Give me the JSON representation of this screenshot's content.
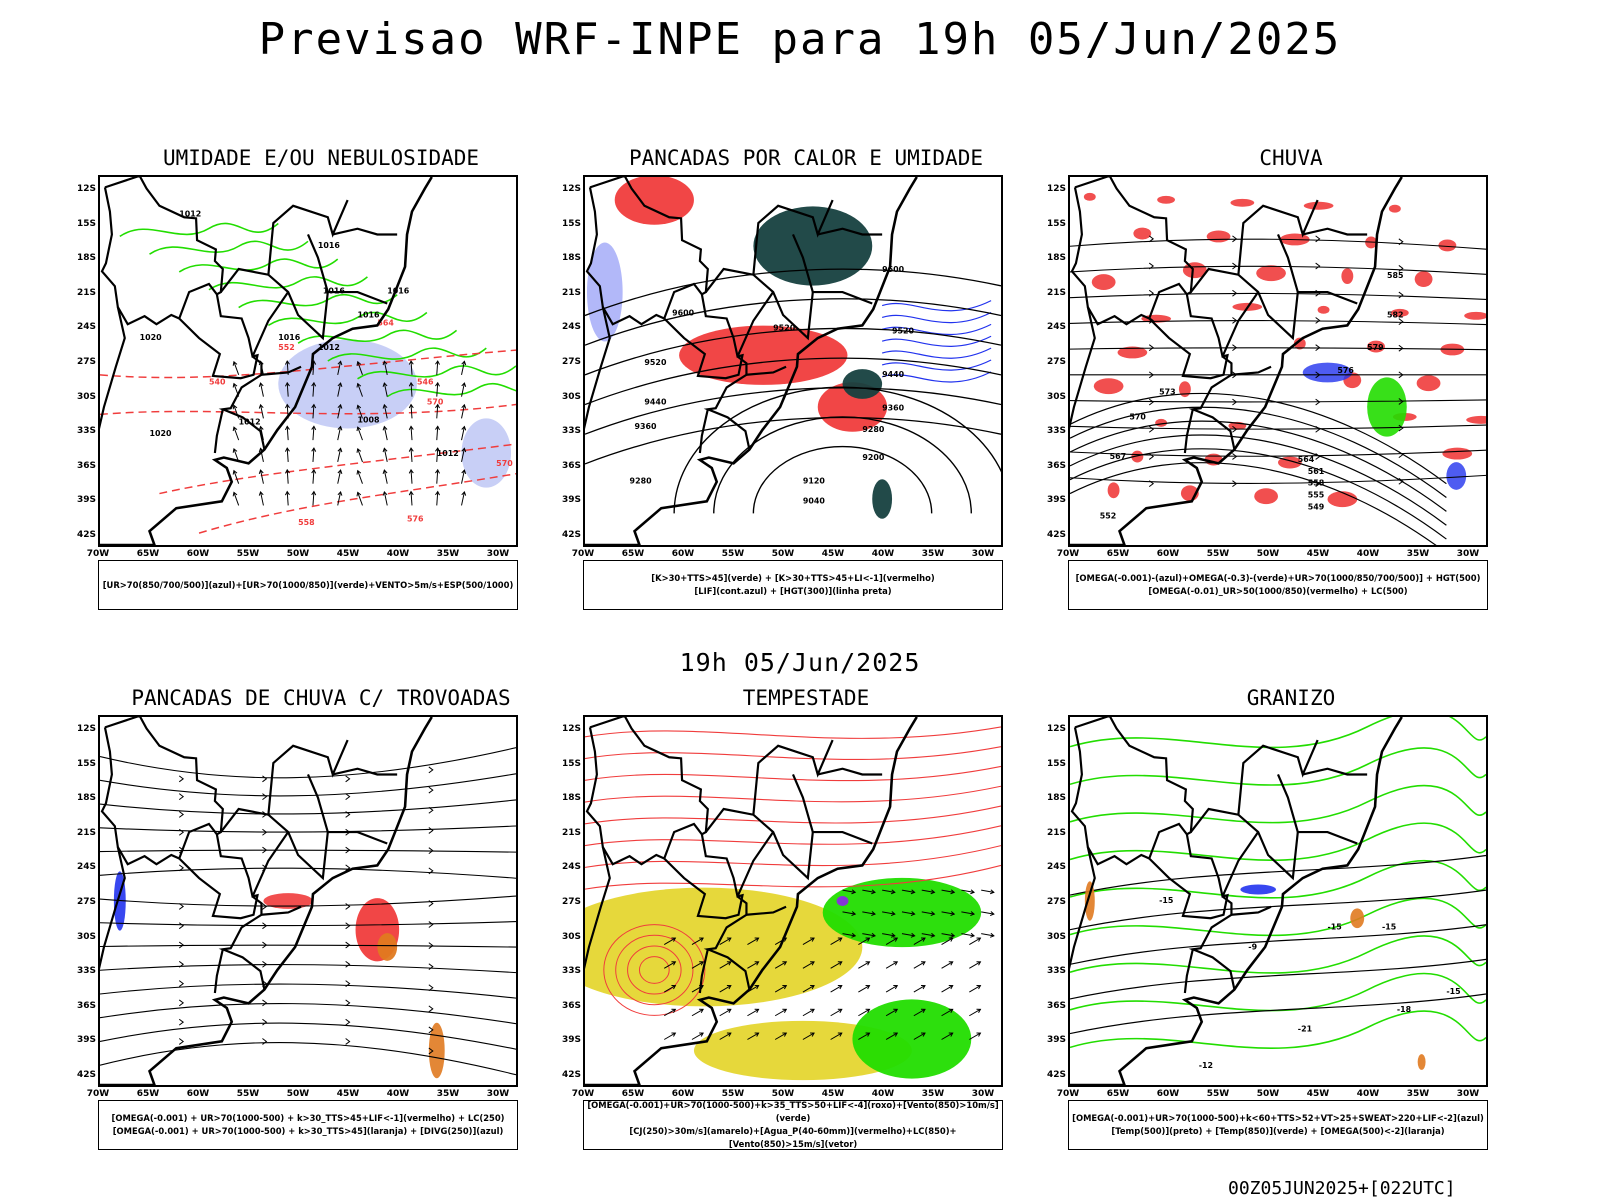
{
  "main_title": "Previsao WRF-INPE  para 19h 05/Jun/2025",
  "mid_title": "19h 05/Jun/2025",
  "footer": "00Z05JUN2025+[022UTC]",
  "lat_labels": [
    "12S",
    "15S",
    "18S",
    "21S",
    "24S",
    "27S",
    "30S",
    "33S",
    "36S",
    "39S",
    "42S"
  ],
  "lon_labels": [
    "70W",
    "65W",
    "60W",
    "55W",
    "50W",
    "45W",
    "40W",
    "35W",
    "30W"
  ],
  "colors": {
    "red": "#f03c3c",
    "green": "#22dd00",
    "blue": "#2233ee",
    "dark_teal": "#16403f",
    "yellow": "#e5d630",
    "light_blue": "#9aa8ee",
    "orange": "#e07a20",
    "purple": "#8a2be2"
  },
  "panels": [
    {
      "title": "UMIDADE E/OU NEBULOSIDADE",
      "legend": [
        "[UR>70(850/700/500)](azul)+[UR>70(1000/850)](verde)+VENTO>5m/s+ESP(500/1000)"
      ],
      "contour_labels": [
        "1012",
        "1016",
        "1016",
        "1016",
        "1016",
        "1016",
        "1020",
        "1020",
        "1012",
        "1012",
        "1008",
        "1012",
        "570",
        "576",
        "558",
        "552",
        "546",
        "540",
        "564",
        "570"
      ]
    },
    {
      "title": "PANCADAS POR CALOR E UMIDADE",
      "legend": [
        "[K>30+TTS>45](verde) + [K>30+TTS>45+LI<-1](vermelho)",
        "[LIF](cont.azul) + [HGT(300)](linha preta)"
      ],
      "contour_labels": [
        "9600",
        "9600",
        "9520",
        "9520",
        "9520",
        "9440",
        "9440",
        "9360",
        "9360",
        "9280",
        "9280",
        "9200",
        "9120",
        "9040"
      ]
    },
    {
      "title": "CHUVA",
      "legend": [
        "[OMEGA(-0.001)-(azul)+OMEGA(-0.3)-(verde)+UR>70(1000/850/700/500)] + HGT(500)",
        "[OMEGA(-0.01)_UR>50(1000/850)(vermelho) + LC(500)"
      ],
      "contour_labels": [
        "585",
        "582",
        "579",
        "576",
        "573",
        "570",
        "567",
        "564",
        "561",
        "558",
        "555",
        "552",
        "549"
      ]
    },
    {
      "title": "PANCADAS DE CHUVA C/ TROVOADAS",
      "legend": [
        "[OMEGA(-0.001) + UR>70(1000-500) + k>30_TTS>45+LIF<-1](vermelho) + LC(250)",
        "[OMEGA(-0.001) + UR>70(1000-500) + k>30_TTS>45](laranja) + [DIVG(250)](azul)"
      ],
      "contour_labels": []
    },
    {
      "title": "TEMPESTADE",
      "legend": [
        "[OMEGA(-0.001)+UR>70(1000-500)+k>35_TTS>50+LIF<-4](roxo)+[Vento(850)>10m/s](verde)",
        "[CJ(250)>30m/s](amarelo)+[Agua_P(40-60mm)](vermelho)+LC(850)+[Vento(850)>15m/s](vetor)"
      ],
      "contour_labels": []
    },
    {
      "title": "GRANIZO",
      "legend": [
        "[OMEGA(-0.001)+UR>70(1000-500)+k<60+TTS>52+VT>25+SWEAT>220+LIF<-2](azul)",
        "[Temp(500)](preto) + [Temp(850)](verde) + [OMEGA(500)<-2](laranja)"
      ],
      "contour_labels": [
        "-15",
        "-15",
        "-15",
        "-15",
        "-18",
        "-21",
        "-12",
        "-9"
      ]
    }
  ]
}
